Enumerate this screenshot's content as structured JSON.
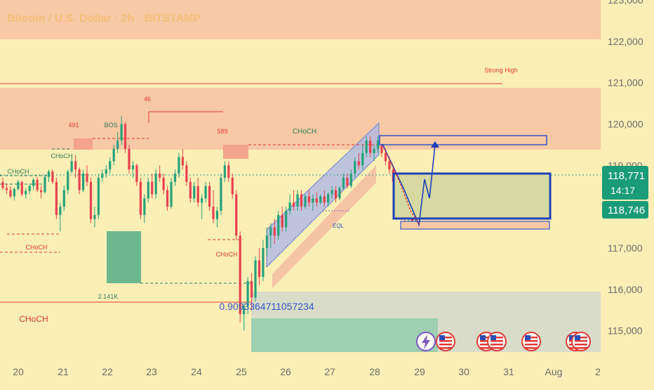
{
  "header": {
    "title": "Bitcoin / U.S. Dollar · 2h · BITSTAMP"
  },
  "colors": {
    "background": "#fbefb6",
    "up": "#26a17b",
    "down": "#e8414f",
    "zone_red": "#f7c9a5",
    "zone_gray": "#d8dcc8",
    "zone_green": "#9ecfb0",
    "box_blue": "#1f3fb8",
    "box_fill": "#d6d9a2",
    "channel_blue": "#aab6e8",
    "channel_red": "#f4b9a0",
    "label_red": "#e53935",
    "label_green": "#2e7d5b",
    "current_price_bg": "#1a9c78"
  },
  "chart_data": {
    "type": "candlestick",
    "title": "Bitcoin / U.S. Dollar · 2h · BITSTAMP",
    "ylim": [
      114500,
      123000
    ],
    "y_ticks": [
      "123,000",
      "122,000",
      "121,000",
      "120,000",
      "119,000",
      "117,000",
      "116,000",
      "115,000"
    ],
    "x_ticks": [
      "20",
      "21",
      "22",
      "23",
      "24",
      "25",
      "26",
      "27",
      "28",
      "29",
      "30",
      "31",
      "Aug",
      "2"
    ],
    "price_labels": [
      {
        "text": "118,771",
        "value": 118771,
        "timer": "14:17"
      },
      {
        "text": "118,746",
        "value": 118746
      }
    ],
    "annotations": [
      {
        "text": "Strong High",
        "style": "red"
      },
      {
        "text": "46",
        "style": "red"
      },
      {
        "text": "491",
        "style": "red"
      },
      {
        "text": "BOS",
        "style": "green"
      },
      {
        "text": "589",
        "style": "red"
      },
      {
        "text": "CHoCH",
        "style": "green"
      },
      {
        "text": "CHoCH",
        "style": "green"
      },
      {
        "text": "CHoCH",
        "style": "green"
      },
      {
        "text": "CHoCH",
        "style": "red"
      },
      {
        "text": "CHoCH",
        "style": "red"
      },
      {
        "text": "CHoCH",
        "style": "red"
      },
      {
        "text": "EQL",
        "style": "blue"
      },
      {
        "text": "2.141K",
        "style": "green"
      },
      {
        "text": "0.9093364711057234",
        "style": "blue"
      }
    ],
    "candles": [
      [
        118600,
        118700,
        118400,
        118450
      ],
      [
        118450,
        118560,
        118300,
        118400
      ],
      [
        118400,
        118500,
        118200,
        118250
      ],
      [
        118250,
        118470,
        118150,
        118430
      ],
      [
        118430,
        118650,
        118380,
        118600
      ],
      [
        118600,
        118620,
        118250,
        118300
      ],
      [
        118300,
        118450,
        118200,
        118380
      ],
      [
        118380,
        118550,
        118300,
        118500
      ],
      [
        118500,
        118700,
        118400,
        118650
      ],
      [
        118650,
        118720,
        118350,
        118400
      ],
      [
        118400,
        118500,
        118200,
        118350
      ],
      [
        118350,
        118780,
        118320,
        118720
      ],
      [
        118720,
        118900,
        118600,
        118850
      ],
      [
        118850,
        118900,
        118550,
        118600
      ],
      [
        118600,
        118700,
        117700,
        117800
      ],
      [
        117800,
        118100,
        117400,
        118000
      ],
      [
        118000,
        118500,
        117900,
        118400
      ],
      [
        118400,
        118900,
        118300,
        118850
      ],
      [
        118850,
        119200,
        118800,
        119100
      ],
      [
        119100,
        119250,
        118700,
        118900
      ],
      [
        118900,
        118950,
        118300,
        118400
      ],
      [
        118400,
        118900,
        118350,
        118800
      ],
      [
        118800,
        119000,
        118500,
        118600
      ],
      [
        118600,
        118700,
        117600,
        117700
      ],
      [
        117700,
        118000,
        117500,
        117800
      ],
      [
        117800,
        118800,
        117700,
        118700
      ],
      [
        118700,
        118900,
        118600,
        118800
      ],
      [
        118800,
        119000,
        118700,
        118900
      ],
      [
        118900,
        119200,
        118800,
        119100
      ],
      [
        119100,
        119500,
        119000,
        119400
      ],
      [
        119400,
        119800,
        119300,
        119600
      ],
      [
        119600,
        120200,
        119500,
        120000
      ],
      [
        120000,
        120050,
        119300,
        119400
      ],
      [
        119400,
        119500,
        118800,
        118900
      ],
      [
        118900,
        119100,
        118700,
        119000
      ],
      [
        119000,
        119050,
        118500,
        118600
      ],
      [
        118600,
        118700,
        117700,
        117800
      ],
      [
        117800,
        118300,
        117600,
        118200
      ],
      [
        118200,
        118700,
        118100,
        118600
      ],
      [
        118600,
        118800,
        118200,
        118300
      ],
      [
        118300,
        118900,
        118200,
        118800
      ],
      [
        118800,
        119000,
        118600,
        118700
      ],
      [
        118700,
        118800,
        118300,
        118400
      ],
      [
        118400,
        118500,
        117900,
        118000
      ],
      [
        118000,
        118700,
        117950,
        118600
      ],
      [
        118600,
        118900,
        118500,
        118800
      ],
      [
        118800,
        119300,
        118700,
        119200
      ],
      [
        119200,
        119400,
        118900,
        119000
      ],
      [
        119000,
        119100,
        118500,
        118600
      ],
      [
        118600,
        118700,
        118100,
        118200
      ],
      [
        118200,
        118600,
        118100,
        118500
      ],
      [
        118500,
        118700,
        118000,
        118100
      ],
      [
        118100,
        118300,
        117700,
        118200
      ],
      [
        118200,
        118600,
        118100,
        118500
      ],
      [
        118500,
        118600,
        117900,
        118000
      ],
      [
        118000,
        118400,
        117600,
        117700
      ],
      [
        117700,
        118000,
        117500,
        117900
      ],
      [
        117900,
        118800,
        117800,
        118700
      ],
      [
        118700,
        119100,
        118600,
        119000
      ],
      [
        119000,
        119100,
        118600,
        118700
      ],
      [
        118700,
        118800,
        118200,
        118300
      ],
      [
        118300,
        118400,
        117200,
        117300
      ],
      [
        117300,
        117400,
        115200,
        115400
      ],
      [
        115400,
        115700,
        115000,
        115600
      ],
      [
        115600,
        116300,
        115400,
        116200
      ],
      [
        116200,
        116400,
        115500,
        115800
      ],
      [
        115800,
        116800,
        115700,
        116700
      ],
      [
        116700,
        117000,
        116100,
        116300
      ],
      [
        116300,
        117200,
        116200,
        117000
      ],
      [
        117000,
        117500,
        116800,
        117300
      ],
      [
        117300,
        117600,
        117000,
        117500
      ],
      [
        117500,
        117700,
        117100,
        117300
      ],
      [
        117300,
        117900,
        117200,
        117800
      ],
      [
        117800,
        118000,
        117400,
        117500
      ],
      [
        117500,
        118000,
        117400,
        117900
      ],
      [
        117900,
        118300,
        117800,
        118100
      ],
      [
        118100,
        118400,
        117900,
        118000
      ],
      [
        118000,
        118400,
        117900,
        118300
      ],
      [
        118300,
        118400,
        117900,
        118000
      ],
      [
        118000,
        118300,
        117950,
        118250
      ],
      [
        118250,
        118400,
        118000,
        118100
      ],
      [
        118100,
        118300,
        117900,
        118200
      ],
      [
        118200,
        118350,
        118000,
        118100
      ],
      [
        118100,
        118300,
        118050,
        118250
      ],
      [
        118250,
        118400,
        118000,
        118100
      ],
      [
        118100,
        118350,
        118000,
        118300
      ],
      [
        118300,
        118500,
        118200,
        118400
      ],
      [
        118400,
        118500,
        118100,
        118200
      ],
      [
        118200,
        118500,
        118150,
        118450
      ],
      [
        118450,
        118800,
        118400,
        118700
      ],
      [
        118700,
        118800,
        118450,
        118500
      ],
      [
        118500,
        118900,
        118450,
        118800
      ],
      [
        118800,
        119200,
        118700,
        119100
      ],
      [
        119100,
        119300,
        118900,
        119000
      ],
      [
        119000,
        119500,
        118900,
        119300
      ],
      [
        119300,
        119700,
        119200,
        119600
      ],
      [
        119600,
        119700,
        119200,
        119300
      ],
      [
        119300,
        119500,
        119100,
        119400
      ],
      [
        119400,
        119700,
        119300,
        119600
      ],
      [
        119600,
        119700,
        119200,
        119300
      ],
      [
        119300,
        119400,
        119000,
        119100
      ],
      [
        119100,
        119200,
        118800,
        118900
      ],
      [
        118900,
        119000,
        118500,
        118600
      ],
      [
        118600,
        118700,
        118200,
        118300
      ],
      [
        118300,
        118400,
        117800,
        117900
      ],
      [
        117900,
        118100,
        117600,
        117700
      ],
      [
        117700,
        118000,
        117500,
        117900
      ],
      [
        117900,
        118000,
        117500,
        117600
      ],
      [
        117600,
        117800,
        117500,
        117700
      ],
      [
        117700,
        118300,
        117600,
        118200
      ],
      [
        118200,
        118800,
        118100,
        118771
      ]
    ]
  }
}
